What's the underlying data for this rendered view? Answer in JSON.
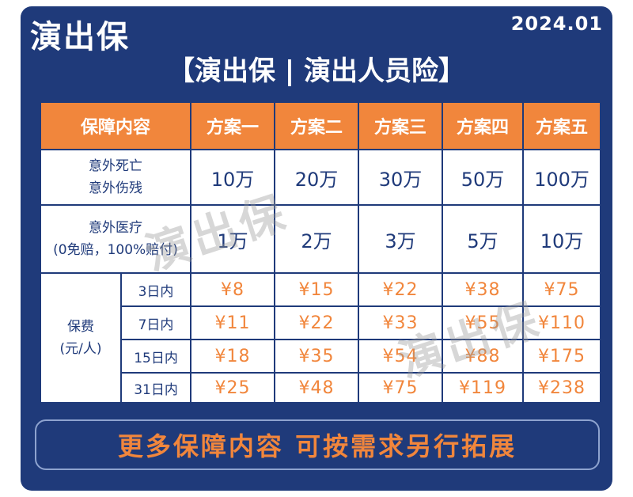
{
  "header": {
    "brand": "演出保",
    "date": "2024.01",
    "subtitle": "【演出保 | 演出人员险】"
  },
  "table": {
    "corner": "保障内容",
    "plans": [
      "方案一",
      "方案二",
      "方案三",
      "方案四",
      "方案五"
    ],
    "rows": [
      {
        "label_lines": [
          "意外死亡",
          "意外伤残"
        ],
        "values": [
          "10万",
          "20万",
          "30万",
          "50万",
          "100万"
        ]
      },
      {
        "label_lines": [
          "意外医疗",
          "(0免赔，100%赔付)"
        ],
        "values": [
          "1万",
          "2万",
          "3万",
          "5万",
          "10万"
        ]
      }
    ],
    "premium": {
      "label_lines": [
        "保费",
        "(元/人)"
      ],
      "rows": [
        {
          "duration": "3日内",
          "prices": [
            "¥8",
            "¥15",
            "¥22",
            "¥38",
            "¥75"
          ]
        },
        {
          "duration": "7日内",
          "prices": [
            "¥11",
            "¥22",
            "¥33",
            "¥55",
            "¥110"
          ]
        },
        {
          "duration": "15日内",
          "prices": [
            "¥18",
            "¥35",
            "¥54",
            "¥88",
            "¥175"
          ]
        },
        {
          "duration": "31日内",
          "prices": [
            "¥25",
            "¥48",
            "¥75",
            "¥119",
            "¥238"
          ]
        }
      ]
    }
  },
  "watermark": "演出保",
  "footer": {
    "text": "更多保障内容 可按需求另行拓展"
  },
  "colors": {
    "navy": "#1f3a7a",
    "orange": "#f1863c",
    "white": "#ffffff"
  }
}
